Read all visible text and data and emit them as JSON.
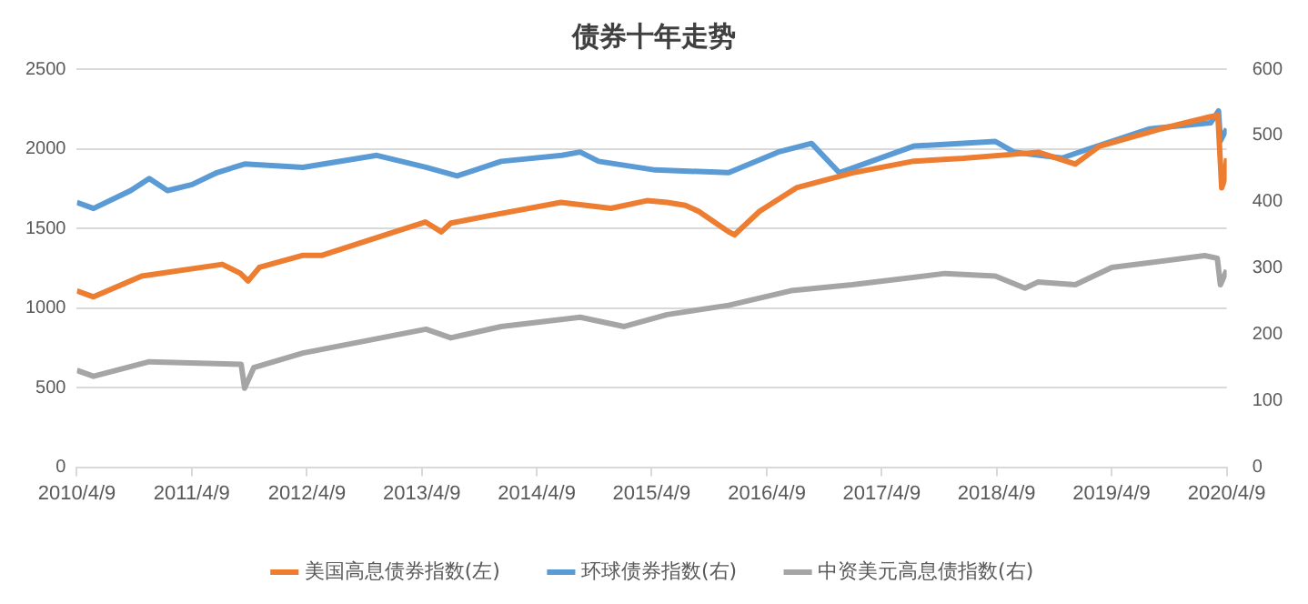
{
  "chart_data": {
    "type": "line",
    "title": "债券十年走势",
    "legend": "bottom",
    "grid": "y",
    "marker": "none",
    "line_style": "solid",
    "xlim": [
      "2010-04-09",
      "2020-04-09"
    ],
    "xticks": [
      {
        "value": "2010-04-09",
        "label": "2010/4/9"
      },
      {
        "value": "2011-04-09",
        "label": "2011/4/9"
      },
      {
        "value": "2012-04-09",
        "label": "2012/4/9"
      },
      {
        "value": "2013-04-09",
        "label": "2013/4/9"
      },
      {
        "value": "2014-04-09",
        "label": "2014/4/9"
      },
      {
        "value": "2015-04-09",
        "label": "2015/4/9"
      },
      {
        "value": "2016-04-09",
        "label": "2016/4/9"
      },
      {
        "value": "2017-04-09",
        "label": "2017/4/9"
      },
      {
        "value": "2018-04-09",
        "label": "2018/4/9"
      },
      {
        "value": "2019-04-09",
        "label": "2019/4/9"
      },
      {
        "value": "2020-04-09",
        "label": "2020/4/9"
      }
    ],
    "ylim": [
      0,
      2500
    ],
    "yticks": [
      0,
      500,
      1000,
      1500,
      2000,
      2500
    ],
    "y2lim": [
      0,
      600
    ],
    "y2ticks": [
      0,
      100,
      200,
      300,
      400,
      500,
      600
    ],
    "series": [
      {
        "name": "美国高息债券指数(左)",
        "color": "#ed7d31",
        "axis": "y",
        "x": [
          "2010-04-09",
          "2010-06-01",
          "2010-11-01",
          "2011-07-15",
          "2011-09-10",
          "2011-10-05",
          "2011-11-10",
          "2012-03-25",
          "2012-05-25",
          "2013-04-20",
          "2013-06-10",
          "2013-07-10",
          "2013-11-05",
          "2014-06-25",
          "2014-12-01",
          "2015-03-25",
          "2015-05-28",
          "2015-07-25",
          "2015-09-05",
          "2015-12-10",
          "2015-12-28",
          "2016-03-17",
          "2016-07-12",
          "2017-01-05",
          "2017-07-20",
          "2017-12-25",
          "2018-08-20",
          "2018-12-15",
          "2019-03-01",
          "2019-09-15",
          "2020-02-15",
          "2020-03-12",
          "2020-03-24",
          "2020-04-01",
          "2020-04-09"
        ],
        "values": [
          1107,
          1070,
          1200,
          1274,
          1218,
          1170,
          1255,
          1330,
          1330,
          1540,
          1478,
          1533,
          1578,
          1663,
          1626,
          1674,
          1663,
          1644,
          1607,
          1478,
          1459,
          1607,
          1755,
          1848,
          1922,
          1940,
          1978,
          1904,
          2015,
          2126,
          2200,
          2210,
          1755,
          1800,
          1940
        ]
      },
      {
        "name": "环球债券指数(右)",
        "color": "#5b9bd5",
        "axis": "y2",
        "x": [
          "2010-04-09",
          "2010-06-01",
          "2010-09-27",
          "2010-11-25",
          "2011-01-22",
          "2011-04-10",
          "2011-06-28",
          "2011-09-24",
          "2012-03-27",
          "2012-11-17",
          "2013-04-22",
          "2013-07-30",
          "2013-12-17",
          "2014-06-28",
          "2014-08-25",
          "2014-10-23",
          "2015-04-20",
          "2015-12-10",
          "2016-05-15",
          "2016-08-29",
          "2016-11-25",
          "2016-12-20",
          "2017-07-20",
          "2018-04-05",
          "2018-06-03",
          "2018-11-03",
          "2019-01-22",
          "2019-08-08",
          "2020-02-18",
          "2020-03-14",
          "2020-03-20",
          "2020-04-09"
        ],
        "values": [
          399,
          390,
          417,
          435,
          417,
          426,
          444,
          457,
          452,
          470,
          452,
          439,
          461,
          470,
          475,
          461,
          448,
          444,
          475,
          488,
          444,
          448,
          484,
          491,
          475,
          466,
          479,
          510,
          519,
          537,
          492,
          510
        ]
      },
      {
        "name": "中资美元高息债指数(右)",
        "color": "#a5a5a5",
        "axis": "y2",
        "x": [
          "2010-04-09",
          "2010-06-01",
          "2010-11-25",
          "2011-09-13",
          "2011-09-24",
          "2011-10-23",
          "2012-03-27",
          "2013-04-22",
          "2013-07-10",
          "2013-12-17",
          "2014-08-25",
          "2015-01-12",
          "2015-05-28",
          "2015-12-10",
          "2016-06-25",
          "2017-01-05",
          "2017-10-27",
          "2018-04-05",
          "2018-07-08",
          "2018-08-18",
          "2018-12-15",
          "2019-04-10",
          "2020-01-30",
          "2020-03-10",
          "2020-03-20",
          "2020-04-09"
        ],
        "values": [
          146,
          137,
          159,
          155,
          119,
          150,
          172,
          208,
          195,
          212,
          226,
          212,
          230,
          244,
          266,
          275,
          292,
          288,
          270,
          279,
          275,
          301,
          319,
          315,
          275,
          297
        ]
      }
    ]
  }
}
